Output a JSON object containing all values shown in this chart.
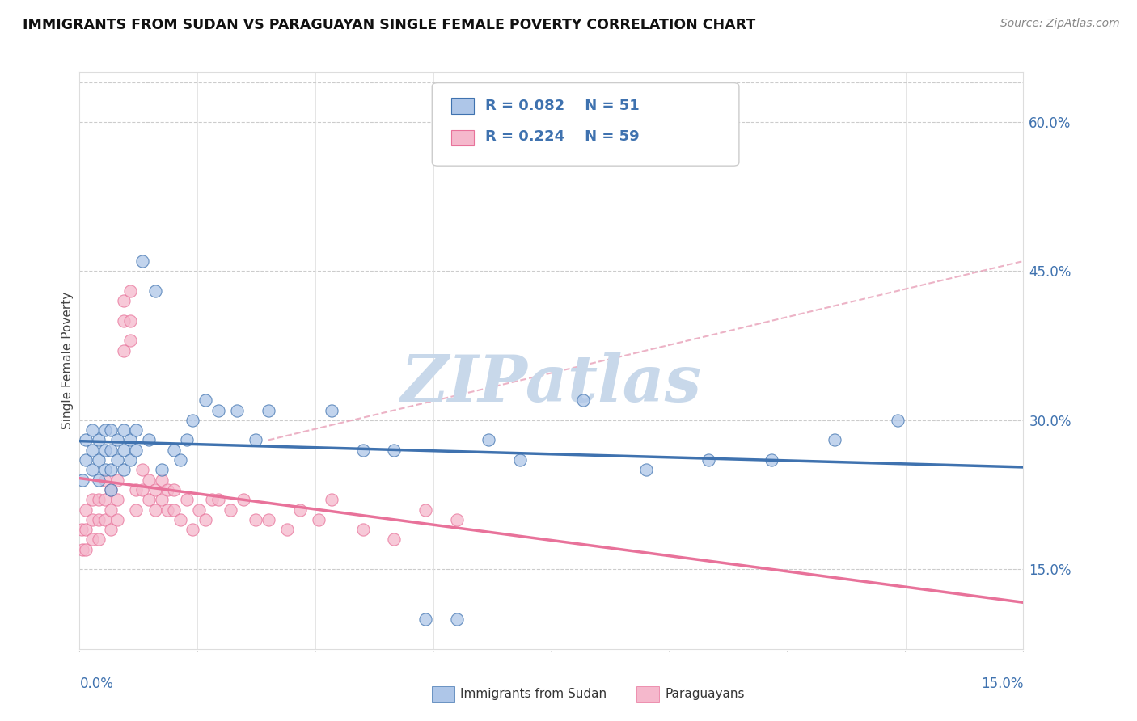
{
  "title": "IMMIGRANTS FROM SUDAN VS PARAGUAYAN SINGLE FEMALE POVERTY CORRELATION CHART",
  "source_text": "Source: ZipAtlas.com",
  "ylabel": "Single Female Poverty",
  "y_tick_labels": [
    "15.0%",
    "30.0%",
    "45.0%",
    "60.0%"
  ],
  "y_tick_values": [
    0.15,
    0.3,
    0.45,
    0.6
  ],
  "x_min": 0.0,
  "x_max": 0.15,
  "y_min": 0.07,
  "y_max": 0.65,
  "legend_R1": "R = 0.082",
  "legend_N1": "N = 51",
  "legend_R2": "R = 0.224",
  "legend_N2": "N = 59",
  "color_blue": "#aec6e8",
  "color_pink": "#f5b8cc",
  "color_blue_line": "#3f72af",
  "color_pink_line": "#e8729a",
  "color_blue_text": "#3f72af",
  "watermark_color": "#c8d8ea",
  "label_blue": "Immigrants from Sudan",
  "label_pink": "Paraguayans",
  "scatter_blue_x": [
    0.0005,
    0.001,
    0.001,
    0.002,
    0.002,
    0.002,
    0.003,
    0.003,
    0.003,
    0.004,
    0.004,
    0.004,
    0.005,
    0.005,
    0.005,
    0.005,
    0.006,
    0.006,
    0.007,
    0.007,
    0.007,
    0.008,
    0.008,
    0.009,
    0.009,
    0.01,
    0.011,
    0.012,
    0.013,
    0.015,
    0.016,
    0.017,
    0.018,
    0.02,
    0.022,
    0.025,
    0.028,
    0.03,
    0.04,
    0.045,
    0.05,
    0.055,
    0.06,
    0.065,
    0.07,
    0.08,
    0.09,
    0.1,
    0.11,
    0.12,
    0.13
  ],
  "scatter_blue_y": [
    0.24,
    0.26,
    0.28,
    0.25,
    0.27,
    0.29,
    0.24,
    0.26,
    0.28,
    0.25,
    0.27,
    0.29,
    0.23,
    0.25,
    0.27,
    0.29,
    0.26,
    0.28,
    0.25,
    0.27,
    0.29,
    0.26,
    0.28,
    0.27,
    0.29,
    0.46,
    0.28,
    0.43,
    0.25,
    0.27,
    0.26,
    0.28,
    0.3,
    0.32,
    0.31,
    0.31,
    0.28,
    0.31,
    0.31,
    0.27,
    0.27,
    0.1,
    0.1,
    0.28,
    0.26,
    0.32,
    0.25,
    0.26,
    0.26,
    0.28,
    0.3
  ],
  "scatter_pink_x": [
    0.0003,
    0.0005,
    0.001,
    0.001,
    0.001,
    0.002,
    0.002,
    0.002,
    0.003,
    0.003,
    0.003,
    0.004,
    0.004,
    0.004,
    0.005,
    0.005,
    0.005,
    0.006,
    0.006,
    0.006,
    0.007,
    0.007,
    0.007,
    0.008,
    0.008,
    0.008,
    0.009,
    0.009,
    0.01,
    0.01,
    0.011,
    0.011,
    0.012,
    0.012,
    0.013,
    0.013,
    0.014,
    0.014,
    0.015,
    0.015,
    0.016,
    0.017,
    0.018,
    0.019,
    0.02,
    0.021,
    0.022,
    0.024,
    0.026,
    0.028,
    0.03,
    0.033,
    0.035,
    0.038,
    0.04,
    0.045,
    0.05,
    0.055,
    0.06
  ],
  "scatter_pink_y": [
    0.19,
    0.17,
    0.19,
    0.21,
    0.17,
    0.2,
    0.22,
    0.18,
    0.2,
    0.22,
    0.18,
    0.2,
    0.22,
    0.24,
    0.21,
    0.23,
    0.19,
    0.22,
    0.24,
    0.2,
    0.37,
    0.4,
    0.42,
    0.38,
    0.4,
    0.43,
    0.21,
    0.23,
    0.23,
    0.25,
    0.22,
    0.24,
    0.21,
    0.23,
    0.22,
    0.24,
    0.21,
    0.23,
    0.21,
    0.23,
    0.2,
    0.22,
    0.19,
    0.21,
    0.2,
    0.22,
    0.22,
    0.21,
    0.22,
    0.2,
    0.2,
    0.19,
    0.21,
    0.2,
    0.22,
    0.19,
    0.18,
    0.21,
    0.2
  ],
  "dashed_line_color": "#e8a0b8"
}
